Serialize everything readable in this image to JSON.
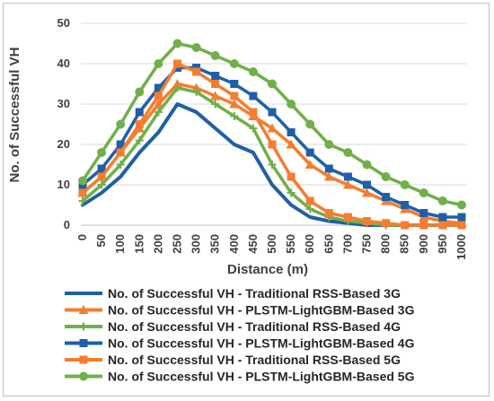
{
  "chart_data": {
    "type": "line",
    "title": "",
    "xlabel": "Distance (m)",
    "ylabel": "No. of Successful VH",
    "ylim": [
      0,
      50
    ],
    "yticks": [
      0,
      10,
      20,
      30,
      40,
      50
    ],
    "grid": "horizontal",
    "legend_position": "bottom",
    "categories": [
      "0",
      "50",
      "100",
      "150",
      "200",
      "250",
      "300",
      "350",
      "400",
      "450",
      "500",
      "550",
      "600",
      "650",
      "700",
      "750",
      "800",
      "850",
      "900",
      "950",
      "1000"
    ],
    "series": [
      {
        "name": "No. of Successful VH - Traditional RSS-Based 3G",
        "color": "#1f5fa8",
        "marker": "none",
        "values": [
          5,
          8,
          12,
          18,
          23,
          30,
          28,
          24,
          20,
          18,
          10,
          5,
          2,
          1,
          0.5,
          0,
          0,
          0,
          0,
          0,
          0
        ]
      },
      {
        "name": "No. of Successful VH - PLSTM-LightGBM-Based 3G",
        "color": "#f47d30",
        "marker": "triangle",
        "values": [
          8,
          12,
          18,
          24,
          30,
          35,
          34,
          32,
          30,
          27,
          24,
          20,
          15,
          12,
          10,
          8,
          6,
          4,
          2,
          1,
          0.5
        ]
      },
      {
        "name": "No. of Successful VH - Traditional RSS-Based 4G",
        "color": "#70b04b",
        "marker": "plus",
        "values": [
          6,
          10,
          15,
          21,
          28,
          34,
          33,
          30,
          27,
          24,
          15,
          8,
          4,
          2,
          1,
          0.5,
          0,
          0,
          0,
          0,
          0
        ]
      },
      {
        "name": "No. of Successful VH - PLSTM-LightGBM-Based 4G",
        "color": "#1f5fa8",
        "marker": "square",
        "values": [
          10,
          14,
          20,
          28,
          34,
          39,
          39,
          37,
          35,
          32,
          28,
          23,
          18,
          14,
          12,
          10,
          7,
          5,
          3,
          2,
          2
        ]
      },
      {
        "name": "No. of Successful VH - Traditional RSS-Based 5G",
        "color": "#f47d30",
        "marker": "square",
        "values": [
          8,
          12,
          18,
          25,
          32,
          40,
          38,
          35,
          32,
          28,
          20,
          12,
          6,
          3,
          2,
          1,
          0.5,
          0,
          0,
          0,
          0
        ]
      },
      {
        "name": "No. of Successful VH - PLSTM-LightGBM-Based 5G",
        "color": "#70b04b",
        "marker": "circle",
        "values": [
          11,
          18,
          25,
          33,
          40,
          45,
          44,
          42,
          40,
          38,
          35,
          30,
          25,
          20,
          18,
          15,
          12,
          10,
          8,
          6,
          5
        ]
      }
    ]
  }
}
